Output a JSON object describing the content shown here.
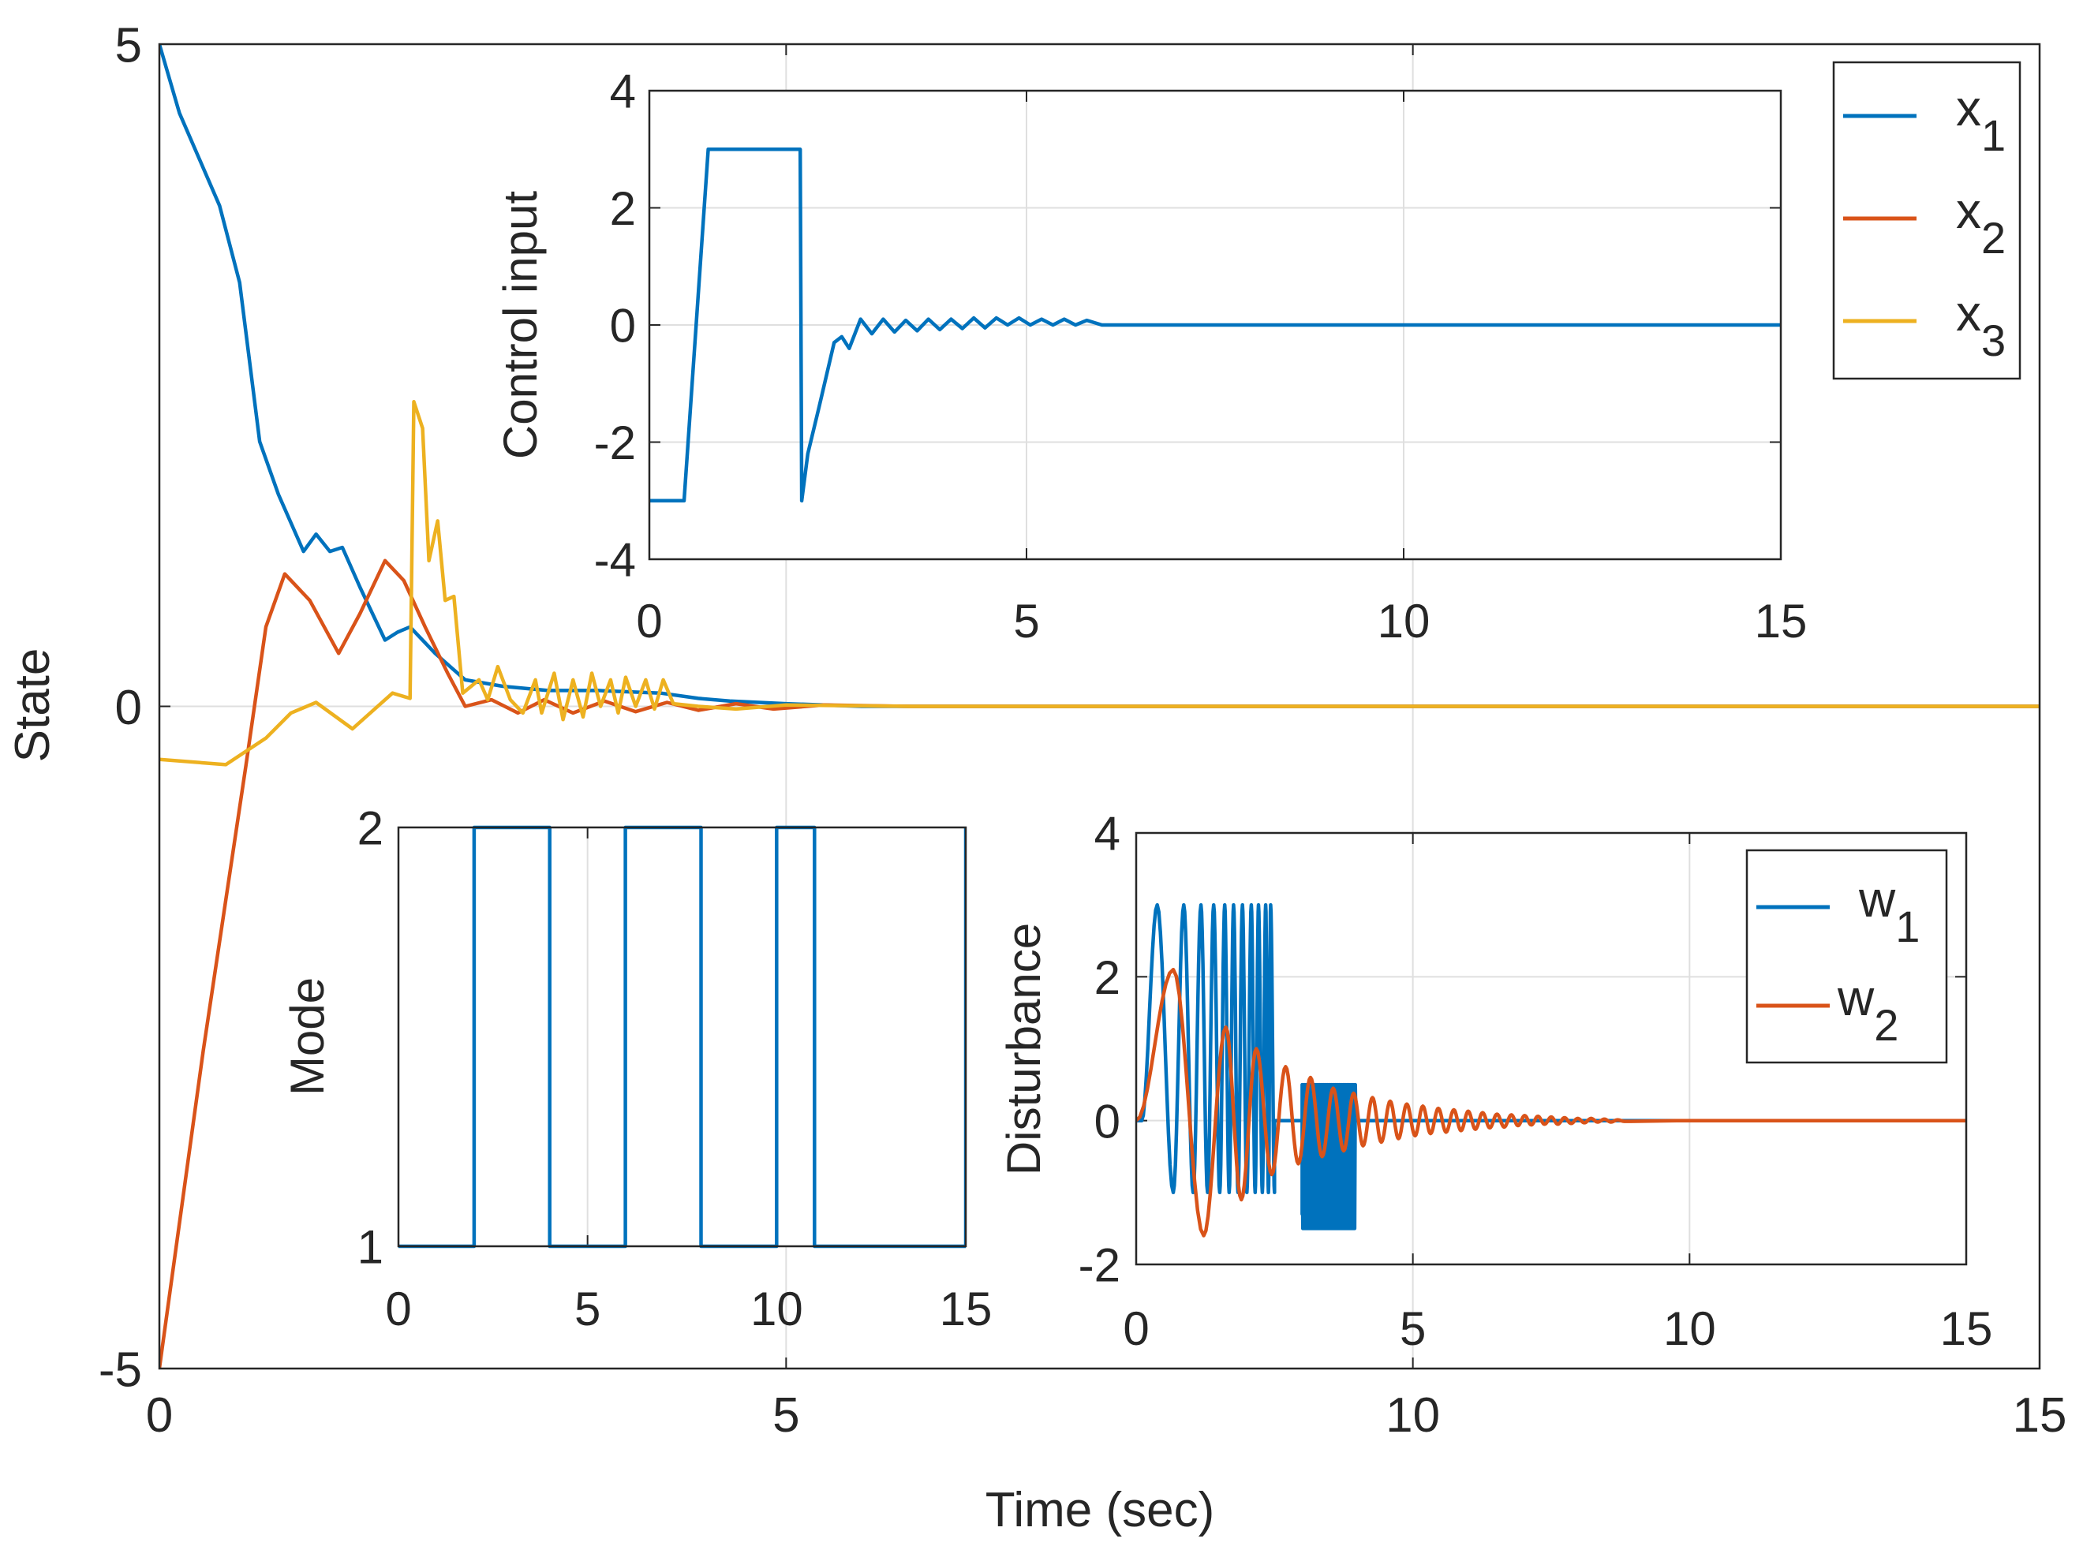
{
  "colors": {
    "x1": "#0072BD",
    "x2": "#D95319",
    "x3": "#EDB120",
    "grid": "#DFDFDF",
    "axis": "#262626"
  },
  "chart_data": [
    {
      "id": "main",
      "type": "line",
      "xlabel": "Time (sec)",
      "ylabel": "State",
      "xlim": [
        0,
        15
      ],
      "ylim": [
        -5,
        5
      ],
      "xticks": [
        "0",
        "5",
        "10",
        "15"
      ],
      "yticks": [
        "-5",
        "0",
        "5"
      ],
      "grid": true,
      "legend": {
        "placement": "top-right",
        "entries": [
          {
            "base": "x",
            "sub": "1"
          },
          {
            "base": "x",
            "sub": "2"
          },
          {
            "base": "x",
            "sub": "3"
          }
        ]
      },
      "series": [
        {
          "name": "x1",
          "color": "#0072BD",
          "points": [
            [
              0,
              5
            ],
            [
              0.16,
              4.48
            ],
            [
              0.48,
              3.78
            ],
            [
              0.64,
              3.2
            ],
            [
              0.8,
              2.0
            ],
            [
              0.95,
              1.6
            ],
            [
              1.15,
              1.17
            ],
            [
              1.25,
              1.3
            ],
            [
              1.36,
              1.17
            ],
            [
              1.46,
              1.2
            ],
            [
              1.6,
              0.9
            ],
            [
              1.8,
              0.5
            ],
            [
              1.9,
              0.56
            ],
            [
              2.0,
              0.6
            ],
            [
              2.2,
              0.4
            ],
            [
              2.44,
              0.2
            ],
            [
              2.75,
              0.15
            ],
            [
              3.1,
              0.12
            ],
            [
              3.5,
              0.12
            ],
            [
              4.0,
              0.1
            ],
            [
              4.3,
              0.06
            ],
            [
              4.55,
              0.04
            ],
            [
              5.0,
              0.02
            ],
            [
              5.6,
              0
            ],
            [
              15,
              0
            ]
          ]
        },
        {
          "name": "x2",
          "color": "#D95319",
          "points": [
            [
              0,
              -5
            ],
            [
              0.35,
              -2.6
            ],
            [
              0.69,
              -0.45
            ],
            [
              0.85,
              0.6
            ],
            [
              1.0,
              1.0
            ],
            [
              1.2,
              0.8
            ],
            [
              1.43,
              0.4
            ],
            [
              1.6,
              0.7
            ],
            [
              1.8,
              1.1
            ],
            [
              1.95,
              0.95
            ],
            [
              2.12,
              0.6
            ],
            [
              2.3,
              0.25
            ],
            [
              2.44,
              0
            ],
            [
              2.65,
              0.05
            ],
            [
              2.86,
              -0.05
            ],
            [
              3.07,
              0.05
            ],
            [
              3.3,
              -0.05
            ],
            [
              3.55,
              0.04
            ],
            [
              3.8,
              -0.04
            ],
            [
              4.05,
              0.03
            ],
            [
              4.3,
              -0.03
            ],
            [
              4.6,
              0.02
            ],
            [
              4.9,
              -0.02
            ],
            [
              5.3,
              0.01
            ],
            [
              6,
              0
            ],
            [
              15,
              0
            ]
          ]
        },
        {
          "name": "x3",
          "color": "#EDB120",
          "points": [
            [
              0,
              -0.4
            ],
            [
              0.53,
              -0.44
            ],
            [
              0.85,
              -0.24
            ],
            [
              1.05,
              -0.05
            ],
            [
              1.25,
              0.03
            ],
            [
              1.54,
              -0.17
            ],
            [
              1.86,
              0.1
            ],
            [
              2.0,
              0.06
            ],
            [
              2.03,
              2.3
            ],
            [
              2.1,
              2.1
            ],
            [
              2.15,
              1.1
            ],
            [
              2.22,
              1.4
            ],
            [
              2.28,
              0.8
            ],
            [
              2.35,
              0.83
            ],
            [
              2.42,
              0.1
            ],
            [
              2.55,
              0.2
            ],
            [
              2.62,
              0.05
            ],
            [
              2.7,
              0.3
            ],
            [
              2.8,
              0.05
            ],
            [
              2.9,
              -0.05
            ],
            [
              3.0,
              0.2
            ],
            [
              3.05,
              -0.05
            ],
            [
              3.15,
              0.25
            ],
            [
              3.22,
              -0.1
            ],
            [
              3.3,
              0.2
            ],
            [
              3.38,
              -0.08
            ],
            [
              3.45,
              0.25
            ],
            [
              3.52,
              0.0
            ],
            [
              3.6,
              0.2
            ],
            [
              3.66,
              -0.05
            ],
            [
              3.72,
              0.22
            ],
            [
              3.8,
              0.0
            ],
            [
              3.88,
              0.2
            ],
            [
              3.95,
              -0.02
            ],
            [
              4.02,
              0.2
            ],
            [
              4.1,
              0.02
            ],
            [
              4.3,
              0.0
            ],
            [
              4.6,
              -0.02
            ],
            [
              5.0,
              0.01
            ],
            [
              6,
              0
            ],
            [
              15,
              0
            ]
          ]
        }
      ]
    },
    {
      "id": "control",
      "type": "line",
      "ylabel": "Control input",
      "xlim": [
        0,
        15
      ],
      "ylim": [
        -4,
        4
      ],
      "xticks": [
        "0",
        "5",
        "10",
        "15"
      ],
      "yticks": [
        "-4",
        "-2",
        "0",
        "2",
        "4"
      ],
      "grid": true,
      "series": [
        {
          "color": "#0072BD",
          "points": [
            [
              0,
              -3
            ],
            [
              0.46,
              -3
            ],
            [
              0.78,
              3
            ],
            [
              2.0,
              3
            ],
            [
              2.02,
              -3
            ],
            [
              2.1,
              -2.2
            ],
            [
              2.25,
              -1.4
            ],
            [
              2.45,
              -0.3
            ],
            [
              2.55,
              -0.2
            ],
            [
              2.65,
              -0.4
            ],
            [
              2.8,
              0.1
            ],
            [
              2.95,
              -0.15
            ],
            [
              3.1,
              0.1
            ],
            [
              3.25,
              -0.12
            ],
            [
              3.4,
              0.08
            ],
            [
              3.55,
              -0.1
            ],
            [
              3.7,
              0.1
            ],
            [
              3.85,
              -0.08
            ],
            [
              4.0,
              0.1
            ],
            [
              4.15,
              -0.06
            ],
            [
              4.3,
              0.12
            ],
            [
              4.45,
              -0.05
            ],
            [
              4.6,
              0.12
            ],
            [
              4.75,
              0.0
            ],
            [
              4.9,
              0.12
            ],
            [
              5.05,
              0.0
            ],
            [
              5.2,
              0.1
            ],
            [
              5.35,
              0.0
            ],
            [
              5.5,
              0.1
            ],
            [
              5.65,
              0.0
            ],
            [
              5.8,
              0.08
            ],
            [
              6.0,
              0
            ],
            [
              15,
              0
            ]
          ]
        }
      ]
    },
    {
      "id": "mode",
      "type": "line",
      "ylabel": "Mode",
      "xlim": [
        0,
        15
      ],
      "ylim": [
        1,
        2
      ],
      "xticks": [
        "0",
        "5",
        "10",
        "15"
      ],
      "yticks": [
        "1",
        "2"
      ],
      "grid": true,
      "series": [
        {
          "color": "#0072BD",
          "points": [
            [
              0,
              1
            ],
            [
              2,
              1
            ],
            [
              2,
              2
            ],
            [
              4,
              2
            ],
            [
              4,
              1
            ],
            [
              6,
              1
            ],
            [
              6,
              2
            ],
            [
              8,
              2
            ],
            [
              8,
              1
            ],
            [
              10,
              1
            ],
            [
              10,
              2
            ],
            [
              11,
              2
            ],
            [
              11,
              1
            ],
            [
              15,
              1
            ],
            [
              15,
              2
            ]
          ]
        }
      ]
    },
    {
      "id": "disturbance",
      "type": "line",
      "ylabel": "Disturbance",
      "xlim": [
        0,
        15
      ],
      "ylim": [
        -2,
        4
      ],
      "xticks": [
        "0",
        "5",
        "10",
        "15"
      ],
      "yticks": [
        "-2",
        "0",
        "2",
        "4"
      ],
      "grid": true,
      "legend": {
        "placement": "top-right",
        "entries": [
          {
            "base": "w",
            "sub": "1"
          },
          {
            "base": "w",
            "sub": "2"
          }
        ]
      },
      "series": [
        {
          "name": "w1",
          "color": "#0072BD",
          "extrema": [
            [
              0,
              0
            ],
            [
              0.1,
              0
            ],
            [
              0.38,
              3
            ],
            [
              0.67,
              -1
            ],
            [
              0.86,
              3
            ],
            [
              1.03,
              -1
            ],
            [
              1.17,
              3
            ],
            [
              1.29,
              -1
            ],
            [
              1.4,
              3
            ],
            [
              1.51,
              -1
            ],
            [
              1.6,
              3
            ],
            [
              1.68,
              -1
            ],
            [
              1.76,
              3
            ],
            [
              1.84,
              -1
            ],
            [
              1.92,
              3
            ],
            [
              2.0,
              -1
            ],
            [
              2.08,
              3
            ],
            [
              2.15,
              -1
            ],
            [
              2.21,
              3
            ],
            [
              2.28,
              -1
            ],
            [
              2.34,
              3
            ],
            [
              2.39,
              -1
            ],
            [
              2.43,
              3
            ],
            [
              2.5,
              -1
            ],
            [
              2.5,
              0
            ],
            [
              3.0,
              0
            ],
            [
              3.0,
              -1.3
            ]
          ],
          "burst": {
            "t_start": 3.0,
            "t_end": 3.97,
            "max": 0.5,
            "min": -1.5
          },
          "tail": [
            [
              3.97,
              0
            ],
            [
              15,
              0
            ]
          ]
        },
        {
          "name": "w2",
          "color": "#D95319",
          "extrema": [
            [
              0,
              0
            ],
            [
              0.67,
              2.1
            ],
            [
              1.22,
              -1.6
            ],
            [
              1.62,
              1.3
            ],
            [
              1.9,
              -1.1
            ],
            [
              2.17,
              1.0
            ],
            [
              2.45,
              -0.75
            ],
            [
              2.7,
              0.75
            ],
            [
              2.93,
              -0.6
            ],
            [
              3.15,
              0.6
            ],
            [
              3.36,
              -0.5
            ],
            [
              3.56,
              0.45
            ],
            [
              3.75,
              -0.42
            ],
            [
              3.93,
              0.38
            ],
            [
              4.1,
              -0.35
            ],
            [
              4.27,
              0.32
            ],
            [
              4.43,
              -0.3
            ],
            [
              4.59,
              0.27
            ],
            [
              4.74,
              -0.25
            ],
            [
              4.89,
              0.23
            ],
            [
              5.04,
              -0.21
            ],
            [
              5.18,
              0.2
            ],
            [
              5.32,
              -0.18
            ],
            [
              5.46,
              0.17
            ],
            [
              5.6,
              -0.16
            ],
            [
              5.74,
              0.15
            ],
            [
              5.87,
              -0.14
            ],
            [
              6.0,
              0.13
            ],
            [
              6.13,
              -0.12
            ],
            [
              6.26,
              0.11
            ],
            [
              6.39,
              -0.1
            ],
            [
              6.52,
              0.09
            ],
            [
              6.65,
              -0.09
            ],
            [
              6.78,
              0.08
            ],
            [
              6.9,
              -0.07
            ],
            [
              7.02,
              0.07
            ],
            [
              7.14,
              -0.06
            ],
            [
              7.26,
              0.06
            ],
            [
              7.38,
              -0.05
            ],
            [
              7.5,
              0.05
            ],
            [
              7.62,
              -0.05
            ],
            [
              7.74,
              0.04
            ],
            [
              7.86,
              -0.04
            ],
            [
              7.98,
              0.03
            ],
            [
              8.1,
              -0.03
            ],
            [
              8.22,
              0.03
            ],
            [
              8.34,
              -0.02
            ],
            [
              8.46,
              0.02
            ],
            [
              8.58,
              -0.02
            ],
            [
              8.7,
              0.01
            ],
            [
              8.82,
              -0.01
            ],
            [
              10,
              0
            ],
            [
              15,
              0
            ]
          ]
        }
      ]
    }
  ]
}
